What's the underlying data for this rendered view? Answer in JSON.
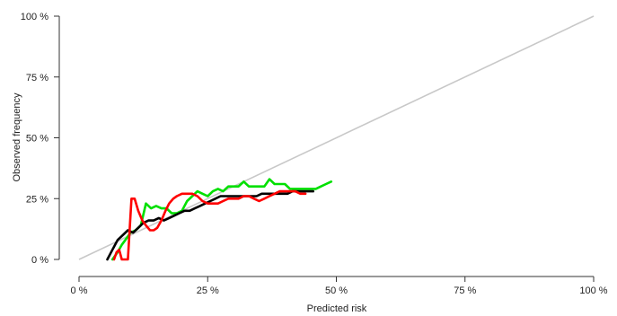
{
  "chart_data": {
    "type": "line",
    "title": "",
    "xlabel": "Predicted risk",
    "ylabel": "Observed frequency",
    "xlim": [
      0,
      100
    ],
    "ylim": [
      0,
      100
    ],
    "x_ticks": [
      {
        "value": 0,
        "label": "0 %"
      },
      {
        "value": 25,
        "label": "25 %"
      },
      {
        "value": 50,
        "label": "50 %"
      },
      {
        "value": 75,
        "label": "75 %"
      },
      {
        "value": 100,
        "label": "100 %"
      }
    ],
    "y_ticks": [
      {
        "value": 0,
        "label": "0 %"
      },
      {
        "value": 25,
        "label": "25 %"
      },
      {
        "value": 50,
        "label": "50 %"
      },
      {
        "value": 75,
        "label": "75 %"
      },
      {
        "value": 100,
        "label": "100 %"
      }
    ],
    "grid": false,
    "legend": "none",
    "reference_line": {
      "color": "#c8c8c8",
      "x": [
        0,
        100
      ],
      "y": [
        0,
        100
      ]
    },
    "series": [
      {
        "color": "#00e000",
        "x": [
          6.5,
          7.5,
          8.3,
          9,
          10,
          11,
          12,
          13,
          14,
          15,
          16,
          17,
          18,
          19,
          20,
          21,
          22,
          23,
          24,
          25,
          26,
          27,
          28,
          29,
          30,
          31,
          32,
          33,
          34,
          35,
          36,
          37,
          38,
          39,
          40,
          41,
          42,
          43,
          44,
          45,
          46,
          47,
          48,
          49
        ],
        "y": [
          0,
          3,
          6,
          8,
          11,
          12,
          14,
          23,
          21,
          22,
          21,
          21,
          19,
          19,
          20,
          24,
          26,
          28,
          27,
          26,
          28,
          29,
          28,
          30,
          30,
          30,
          32,
          30,
          30,
          30,
          30,
          33,
          31,
          31,
          31,
          29,
          29,
          29,
          29,
          29,
          29,
          30,
          31,
          32
        ]
      },
      {
        "color": "#000000",
        "x": [
          5.5,
          6.5,
          7.5,
          8.5,
          9.5,
          10.5,
          11.5,
          12.5,
          13.5,
          14.5,
          15.5,
          16.5,
          17.5,
          18.5,
          19.5,
          20.5,
          21.5,
          22.5,
          23.5,
          24.5,
          25.5,
          26.5,
          27.5,
          28.5,
          29.5,
          30.5,
          31.5,
          32.5,
          33.5,
          34.5,
          35.5,
          36.5,
          37.5,
          38.5,
          39.5,
          40.5,
          41.5,
          42.5,
          43.5,
          44.5,
          45.5
        ],
        "y": [
          0,
          4,
          8,
          10,
          12,
          11,
          13,
          15,
          16,
          16,
          17,
          16,
          17,
          18,
          19,
          20,
          20,
          21,
          22,
          23,
          24,
          25,
          26,
          26,
          26,
          26,
          26,
          26,
          26,
          26,
          27,
          27,
          27,
          27,
          27,
          27,
          28,
          28,
          28,
          28,
          28
        ]
      },
      {
        "color": "#ff0000",
        "x": [
          6.8,
          7.3,
          7.8,
          8.3,
          9,
          9.5,
          10.2,
          10.8,
          11.5,
          12.3,
          13,
          13.8,
          14.5,
          15.2,
          16,
          16.8,
          17.5,
          18.3,
          19,
          20,
          21,
          22,
          23,
          24,
          25,
          26,
          27,
          28,
          29,
          30,
          31,
          32,
          33,
          34,
          35,
          36,
          37,
          38,
          39,
          40,
          41,
          42,
          43,
          44
        ],
        "y": [
          0,
          3,
          4,
          0,
          0,
          0,
          25,
          25,
          20,
          16,
          14,
          12,
          12,
          13,
          16,
          20,
          23,
          25,
          26,
          27,
          27,
          27,
          26,
          24,
          23,
          23,
          23,
          24,
          25,
          25,
          25,
          26,
          26,
          25,
          24,
          25,
          26,
          27,
          28,
          28,
          28,
          28,
          27,
          27
        ]
      }
    ]
  }
}
